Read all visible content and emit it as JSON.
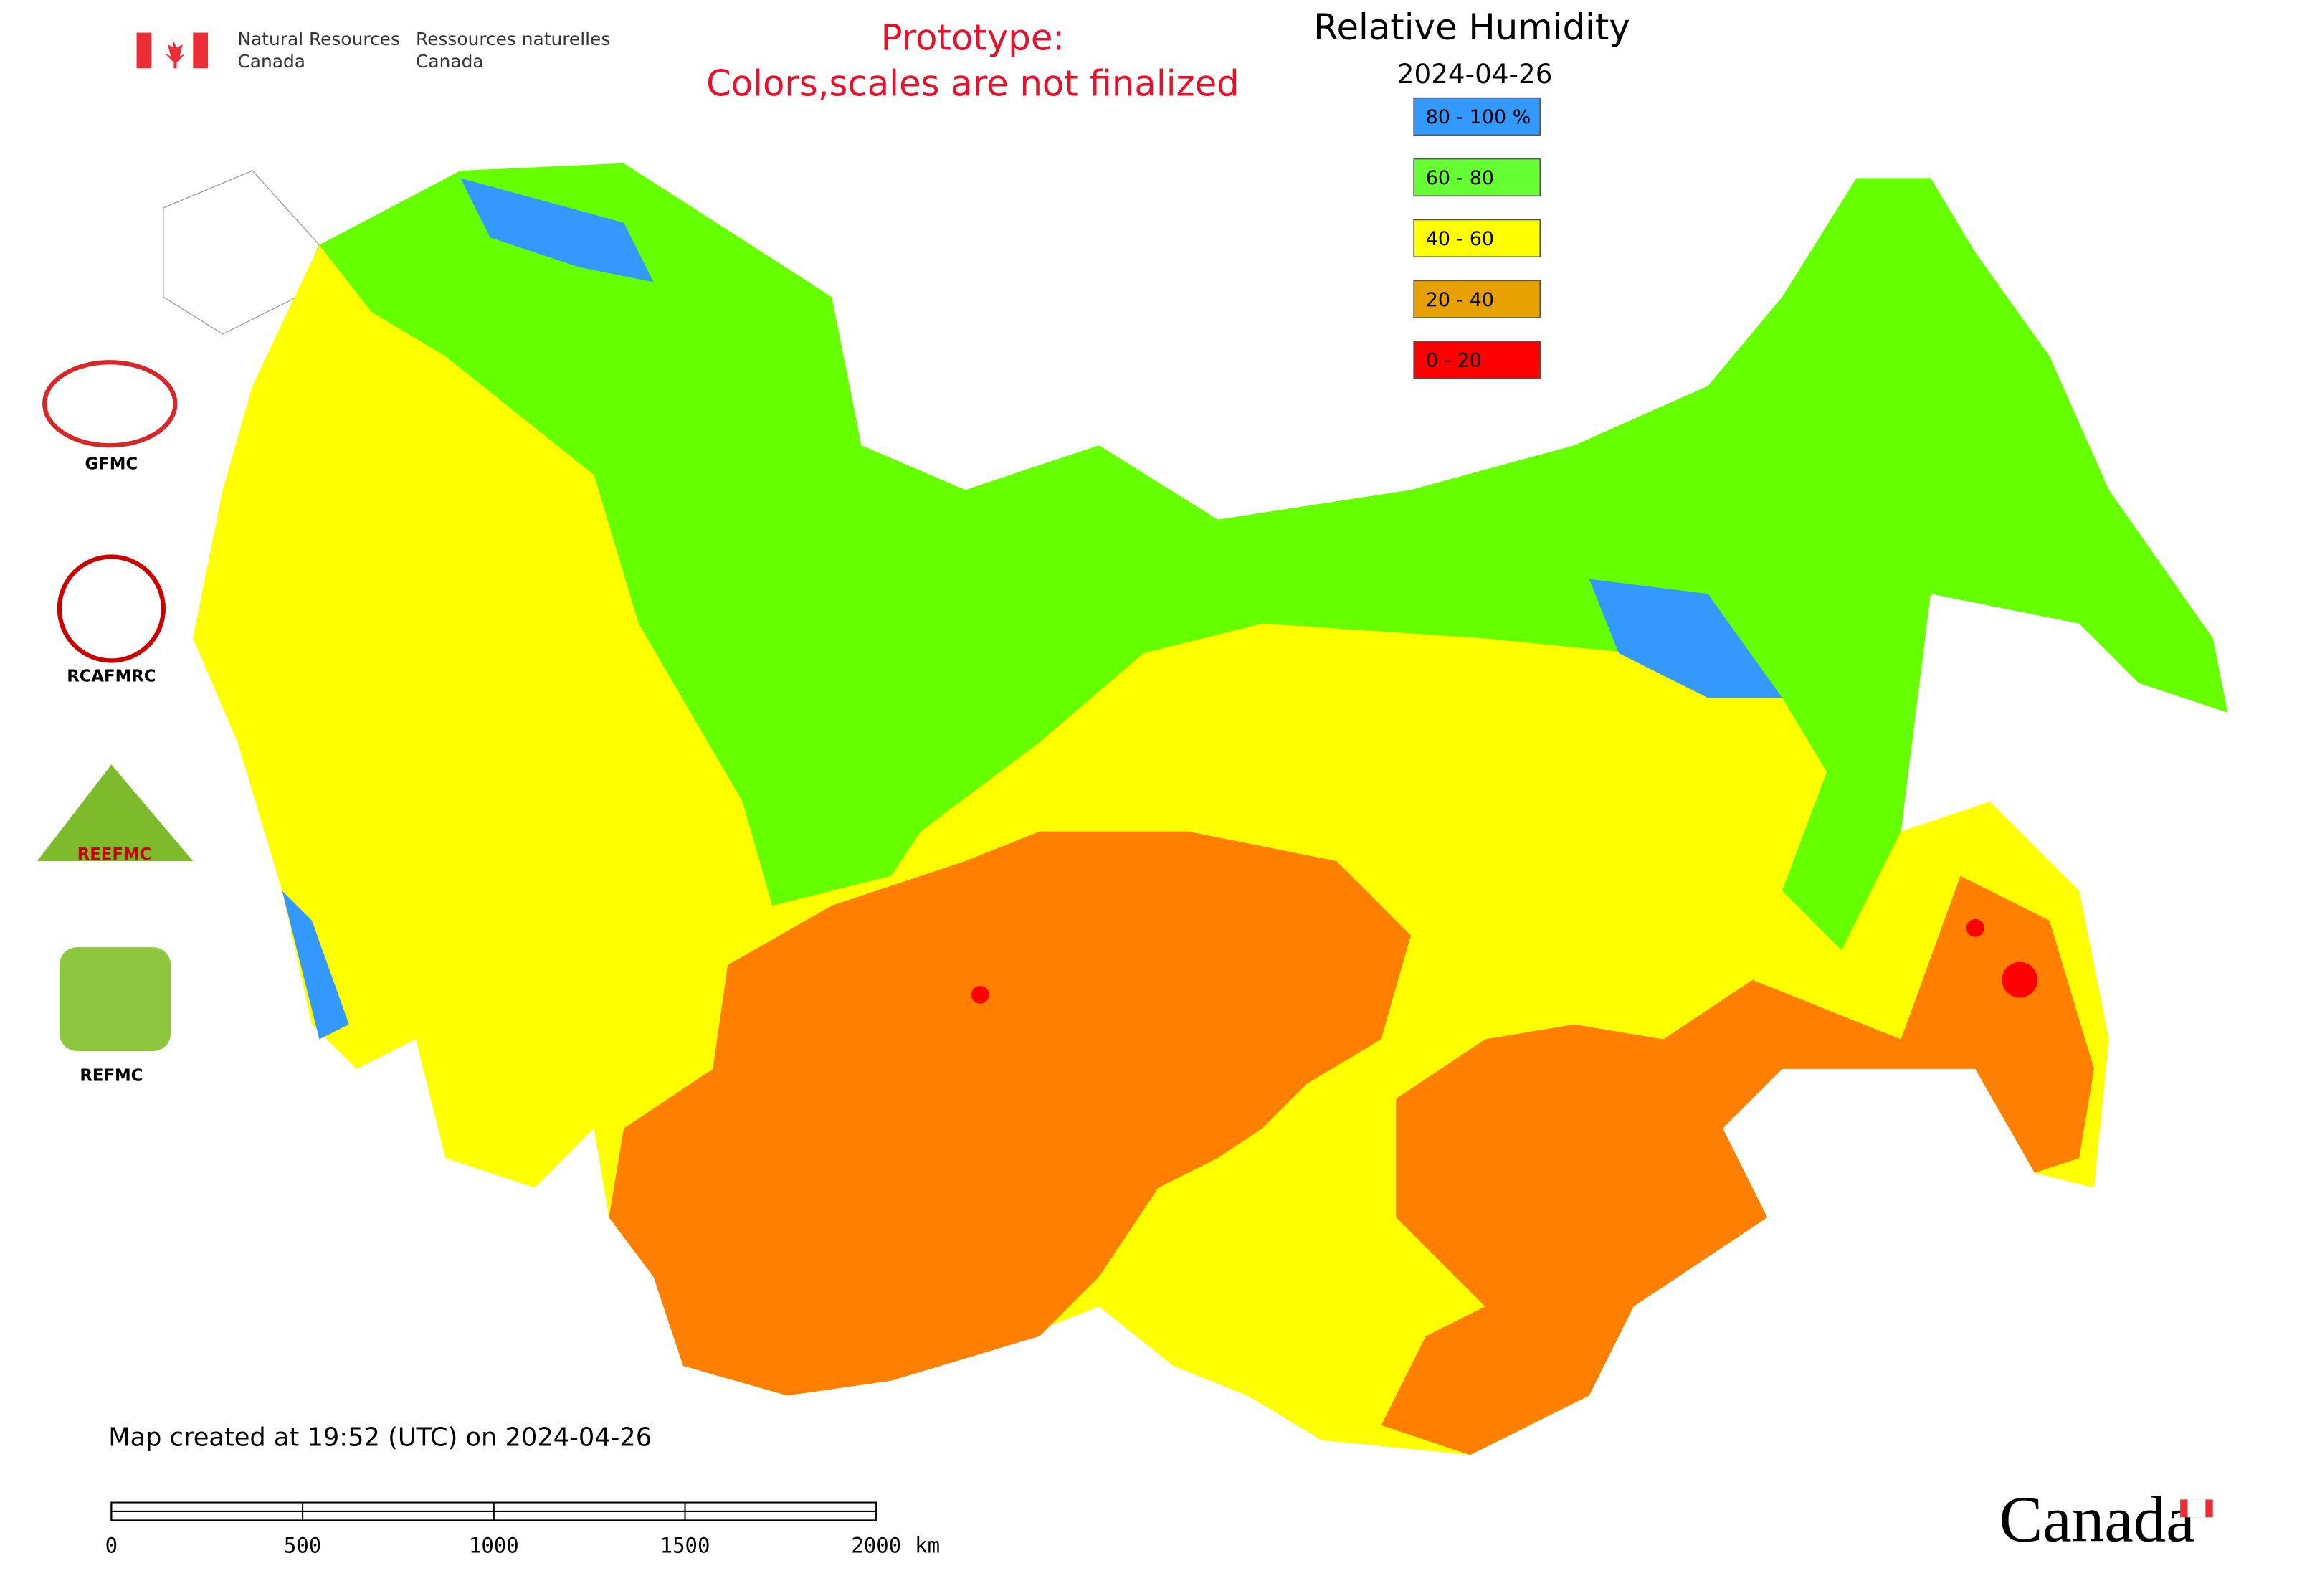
{
  "header": {
    "department_en": [
      "Natural Resources",
      "Canada"
    ],
    "department_fr": [
      "Ressources naturelles",
      "Canada"
    ],
    "notice": [
      "Prototype:",
      "Colors,scales are not finalized"
    ]
  },
  "title": "Relative Humidity",
  "date": "2024-04-26",
  "legend": [
    {
      "label": "80 - 100 %",
      "color": "#3399ff"
    },
    {
      "label": "60 - 80",
      "color": "#66ff33"
    },
    {
      "label": "40 - 60",
      "color": "#ffff00"
    },
    {
      "label": "20 - 40",
      "color": "#e6a000"
    },
    {
      "label": "0 - 20",
      "color": "#ff0000"
    }
  ],
  "logos": [
    "GFMC",
    "RCAFMRC",
    "REEFMC",
    "REFMC"
  ],
  "footer": "Map created at 19:52 (UTC) on 2024-04-26",
  "scale_bar": {
    "ticks": [
      0,
      500,
      1000,
      1500,
      2000
    ],
    "unit": "km"
  },
  "wordmark": "Canada"
}
